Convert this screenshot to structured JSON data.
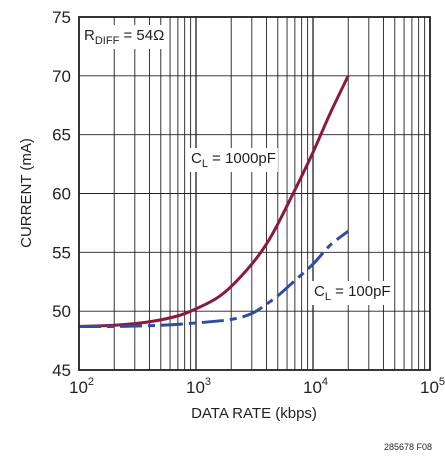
{
  "chart_data": {
    "type": "line",
    "xscale": "log",
    "xlim": [
      100,
      100000
    ],
    "ylim": [
      45,
      75
    ],
    "grid": true,
    "xlabel": "DATA RATE (kbps)",
    "ylabel": "CURRENT (mA)",
    "x_ticks": [
      {
        "base": "10",
        "exp": "2",
        "value": 100
      },
      {
        "base": "10",
        "exp": "3",
        "value": 1000
      },
      {
        "base": "10",
        "exp": "4",
        "value": 10000
      },
      {
        "base": "10",
        "exp": "5",
        "value": 100000
      }
    ],
    "y_ticks": [
      {
        "label": "45",
        "value": 45
      },
      {
        "label": "50",
        "value": 50
      },
      {
        "label": "55",
        "value": 55
      },
      {
        "label": "60",
        "value": 60
      },
      {
        "label": "65",
        "value": 65
      },
      {
        "label": "70",
        "value": 70
      },
      {
        "label": "75",
        "value": 75
      }
    ],
    "series": [
      {
        "label_main": "C",
        "label_sub": "L",
        "label_rest": " = 1000pF",
        "color": "#8b1a3c",
        "dash": "solid",
        "points": [
          [
            100,
            48.7
          ],
          [
            200,
            48.8
          ],
          [
            400,
            49.1
          ],
          [
            700,
            49.6
          ],
          [
            1000,
            50.2
          ],
          [
            1500,
            51.1
          ],
          [
            2000,
            52.1
          ],
          [
            3000,
            54.0
          ],
          [
            4000,
            55.7
          ],
          [
            5000,
            57.4
          ],
          [
            7000,
            60.3
          ],
          [
            10000,
            63.5
          ],
          [
            14000,
            66.8
          ],
          [
            20000,
            70.0
          ]
        ]
      },
      {
        "label_main": "C",
        "label_sub": "L",
        "label_rest": " = 100pF",
        "color": "#2f4f9a",
        "dash": "dashed",
        "points": [
          [
            100,
            48.7
          ],
          [
            200,
            48.7
          ],
          [
            500,
            48.8
          ],
          [
            1000,
            49.0
          ],
          [
            2000,
            49.3
          ],
          [
            3000,
            49.8
          ],
          [
            4000,
            50.6
          ],
          [
            5000,
            51.3
          ],
          [
            7000,
            52.6
          ],
          [
            10000,
            54.0
          ],
          [
            14000,
            55.6
          ],
          [
            20000,
            56.8
          ]
        ]
      }
    ],
    "annotation": {
      "main": "R",
      "sub": "DIFF",
      "rest": " = 54Ω"
    }
  },
  "figure_id": "285678 F08"
}
